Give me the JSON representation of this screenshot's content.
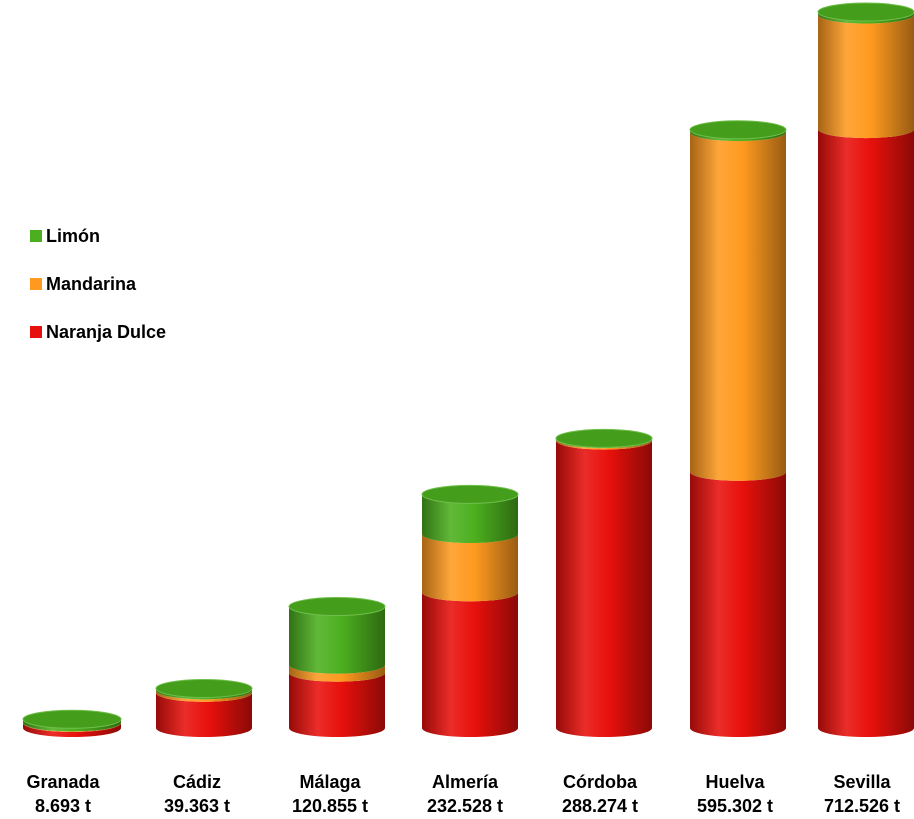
{
  "chart_data": {
    "type": "bar",
    "stacked": true,
    "style": "3d-cylinder",
    "categories": [
      "Granada",
      "Cádiz",
      "Málaga",
      "Almería",
      "Córdoba",
      "Huelva",
      "Sevilla"
    ],
    "totals": [
      "8.693 t",
      "39.363 t",
      "120.855 t",
      "232.528 t",
      "288.274 t",
      "595.302 t",
      "712.526 t"
    ],
    "series": [
      {
        "name": "Naranja Dulce",
        "color": "#e8100c",
        "values": [
          5000,
          35000,
          55000,
          135000,
          286000,
          255000,
          596000
        ]
      },
      {
        "name": "Mandarina",
        "color": "#ff9a1f",
        "values": [
          500,
          2500,
          8000,
          58000,
          1500,
          338000,
          114000
        ]
      },
      {
        "name": "Limón",
        "color": "#4caf1e",
        "values": [
          3193,
          1863,
          57855,
          39528,
          774,
          2302,
          2526
        ]
      }
    ],
    "legend_order": [
      "Limón",
      "Mandarina",
      "Naranja Dulce"
    ],
    "legend_position": "left",
    "grid": false,
    "ylim": [
      0,
      712526
    ]
  }
}
